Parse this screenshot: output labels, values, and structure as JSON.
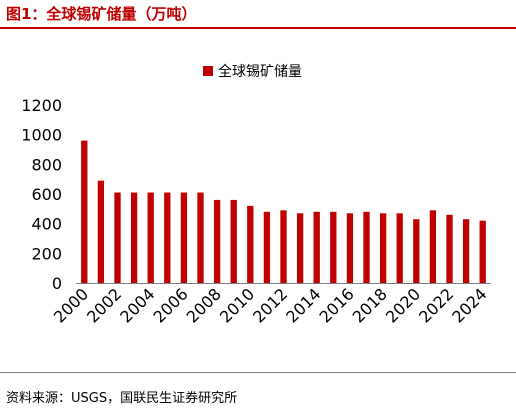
{
  "figure": {
    "title": "图1：全球锡矿储量（万吨）",
    "source": "资料来源：USGS，国联民生证券研究所"
  },
  "colors": {
    "accent": "#c00000",
    "bar": "#c00000",
    "axis": "#7f7f7f"
  },
  "chart_data": {
    "type": "bar",
    "categories": [
      "2000",
      "2001",
      "2002",
      "2003",
      "2004",
      "2005",
      "2006",
      "2007",
      "2008",
      "2009",
      "2010",
      "2011",
      "2012",
      "2013",
      "2014",
      "2015",
      "2016",
      "2017",
      "2018",
      "2019",
      "2020",
      "2021",
      "2022",
      "2023",
      "2024"
    ],
    "series": [
      {
        "name": "全球锡矿储量",
        "values": [
          960,
          690,
          610,
          610,
          610,
          610,
          610,
          610,
          560,
          560,
          520,
          480,
          490,
          470,
          480,
          480,
          470,
          480,
          470,
          470,
          430,
          490,
          460,
          430,
          420
        ]
      }
    ],
    "x_tick_labels": [
      "2000",
      "2002",
      "2004",
      "2006",
      "2008",
      "2010",
      "2012",
      "2014",
      "2016",
      "2018",
      "2020",
      "2022",
      "2024"
    ],
    "y_ticks": [
      0,
      200,
      400,
      600,
      800,
      1000,
      1200
    ],
    "ylim": [
      0,
      1200
    ],
    "grid": false,
    "legend_position": "top-center"
  }
}
